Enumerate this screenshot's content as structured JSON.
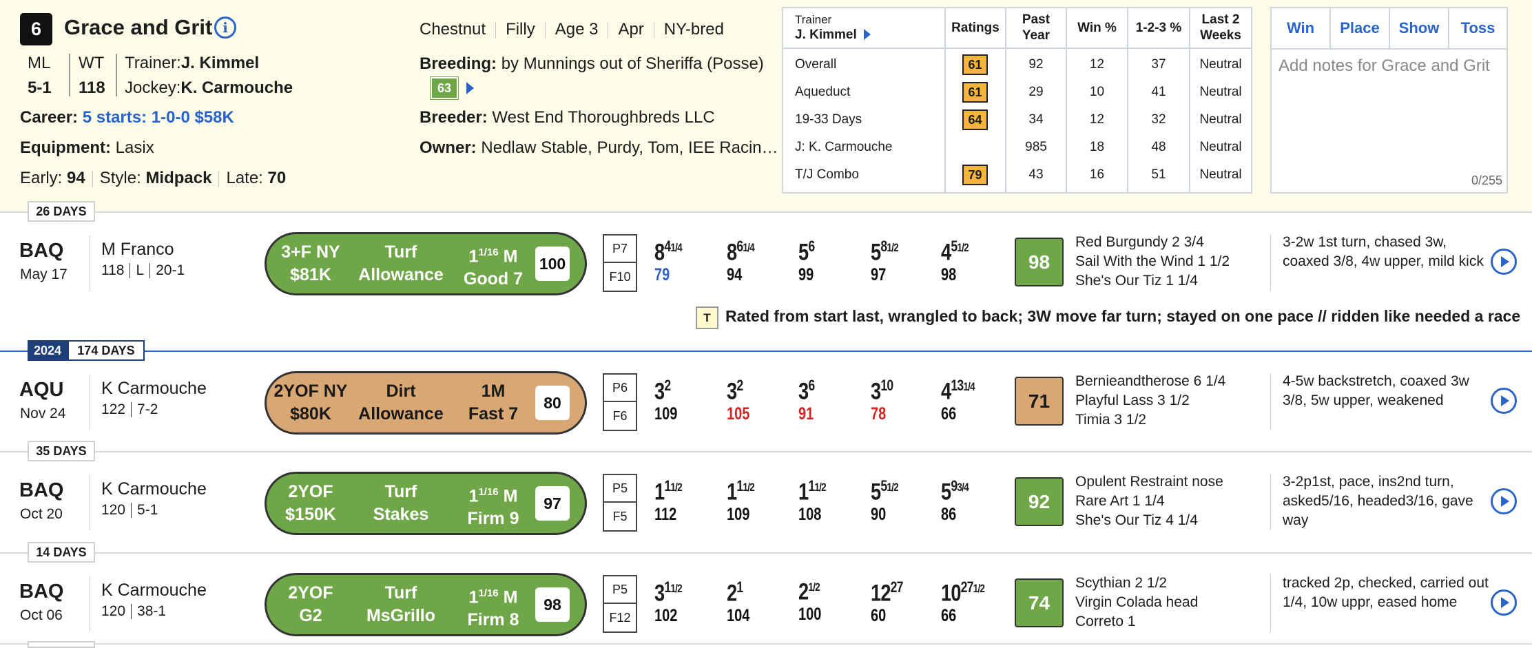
{
  "horse": {
    "number": "6",
    "name": "Grace and Grit",
    "ml_label": "ML",
    "ml": "5-1",
    "wt_label": "WT",
    "wt": "118",
    "trainer_label": "Trainer:",
    "trainer": "J. Kimmel",
    "jockey_label": "Jockey:",
    "jockey": "K. Carmouche",
    "career_label": "Career:",
    "career": "5 starts: 1-0-0 $58K",
    "equipment_label": "Equipment:",
    "equipment": "Lasix",
    "early_label": "Early:",
    "early": "94",
    "style_label": "Style:",
    "style": "Midpack",
    "late_label": "Late:",
    "late": "70",
    "attributes": [
      "Chestnut",
      "Filly",
      "Age 3",
      "Apr",
      "NY-bred"
    ],
    "breeding_label": "Breeding:",
    "breeding": "by Munnings out of Sheriffa (Posse)",
    "breeding_rating": "63",
    "breeder_label": "Breeder:",
    "breeder": "West End Thoroughbreds LLC",
    "owner_label": "Owner:",
    "owner": "Nedlaw Stable, Purdy, Tom, IEE Racin…"
  },
  "stats": {
    "trainer_small": "Trainer",
    "trainer_name": "J. Kimmel",
    "headers": [
      "Ratings",
      "Past\nYear",
      "Win %",
      "1-2-3 %",
      "Last 2\nWeeks"
    ],
    "rows": [
      {
        "label": "Overall",
        "rating": "61",
        "past": "92",
        "win": "12",
        "itm": "37",
        "last2": "Neutral"
      },
      {
        "label": "Aqueduct",
        "rating": "61",
        "past": "29",
        "win": "10",
        "itm": "41",
        "last2": "Neutral"
      },
      {
        "label": "19-33 Days",
        "rating": "64",
        "past": "34",
        "win": "12",
        "itm": "32",
        "last2": "Neutral"
      },
      {
        "label": "J: K. Carmouche",
        "rating": "",
        "past": "985",
        "win": "18",
        "itm": "48",
        "last2": "Neutral"
      },
      {
        "label": "T/J Combo",
        "rating": "79",
        "past": "43",
        "win": "16",
        "itm": "51",
        "last2": "Neutral"
      }
    ]
  },
  "bets": {
    "win": "Win",
    "place": "Place",
    "show": "Show",
    "toss": "Toss",
    "notes_placeholder": "Add notes for Grace and Grit",
    "counter": "0/255"
  },
  "colors": {
    "green": "#6fa648",
    "tan": "#d9a774",
    "blue": "#2a63c9",
    "rating": "#f6b43a"
  },
  "races": [
    {
      "gap": "26 DAYS",
      "track": "BAQ",
      "date": "May 17",
      "jockey": "M Franco",
      "weight": "118",
      "med": "L",
      "odds": "20-1",
      "surface_color": "green",
      "cls1": "3+F NY",
      "cls2": "$81K",
      "type1": "Turf",
      "type2": "Allowance",
      "dist": "1",
      "dist_frac": "1/16",
      "dist_unit": "M",
      "cond": "Good 7",
      "score": "100",
      "post": "P7",
      "field": "F10",
      "calls": [
        {
          "pos": "8",
          "lead": "4",
          "lfrac": "1/4",
          "fig": "79",
          "figcolor": "blue"
        },
        {
          "pos": "8",
          "lead": "6",
          "lfrac": "1/4",
          "fig": "94",
          "figcolor": "black"
        },
        {
          "pos": "5",
          "lead": "6",
          "lfrac": "",
          "fig": "99",
          "figcolor": "black"
        },
        {
          "pos": "5",
          "lead": "8",
          "lfrac": "1/2",
          "fig": "97",
          "figcolor": "black"
        },
        {
          "pos": "4",
          "lead": "5",
          "lfrac": "1/2",
          "fig": "98",
          "figcolor": "black"
        }
      ],
      "speed": "98",
      "finishers": [
        "Red Burgundy  2 3/4",
        "Sail With the Wind  1 1/2",
        "She's Our Tiz  1 1/4"
      ],
      "comment": "3-2w 1st turn, chased 3w, coaxed 3/8, 4w upper, mild kick",
      "note_icon": "T",
      "note": "Rated from start last, wrangled to back; 3W move far turn; stayed on one pace // ridden like needed a race"
    },
    {
      "year": "2024",
      "gap": "174 DAYS",
      "track": "AQU",
      "date": "Nov 24",
      "jockey": "K Carmouche",
      "weight": "122",
      "med": "",
      "odds": "7-2",
      "surface_color": "tan",
      "cls1": "2YOF NY",
      "cls2": "$80K",
      "type1": "Dirt",
      "type2": "Allowance",
      "dist": "1M",
      "dist_frac": "",
      "dist_unit": "",
      "cond": "Fast 7",
      "score": "80",
      "post": "P6",
      "field": "F6",
      "calls": [
        {
          "pos": "3",
          "lead": "2",
          "lfrac": "",
          "fig": "109",
          "figcolor": "black"
        },
        {
          "pos": "3",
          "lead": "2",
          "lfrac": "",
          "fig": "105",
          "figcolor": "red"
        },
        {
          "pos": "3",
          "lead": "6",
          "lfrac": "",
          "fig": "91",
          "figcolor": "red"
        },
        {
          "pos": "3",
          "lead": "10",
          "lfrac": "",
          "fig": "78",
          "figcolor": "red"
        },
        {
          "pos": "4",
          "lead": "13",
          "lfrac": "1/4",
          "fig": "66",
          "figcolor": "black"
        }
      ],
      "speed": "71",
      "finishers": [
        "Bernieandtherose  6 1/4",
        "Playful Lass  3 1/2",
        "Timia  3 1/2"
      ],
      "comment": "4-5w backstretch, coaxed 3w 3/8, 5w upper, weakened"
    },
    {
      "gap": "35 DAYS",
      "track": "BAQ",
      "date": "Oct 20",
      "jockey": "K Carmouche",
      "weight": "120",
      "med": "",
      "odds": "5-1",
      "surface_color": "green",
      "cls1": "2YOF",
      "cls2": "$150K",
      "type1": "Turf",
      "type2": "Stakes",
      "dist": "1",
      "dist_frac": "1/16",
      "dist_unit": "M",
      "cond": "Firm 9",
      "score": "97",
      "post": "P5",
      "field": "F5",
      "calls": [
        {
          "pos": "1",
          "lead": "1",
          "lfrac": "1/2",
          "fig": "112",
          "figcolor": "black"
        },
        {
          "pos": "1",
          "lead": "1",
          "lfrac": "1/2",
          "fig": "109",
          "figcolor": "black"
        },
        {
          "pos": "1",
          "lead": "1",
          "lfrac": "1/2",
          "fig": "108",
          "figcolor": "black"
        },
        {
          "pos": "5",
          "lead": "5",
          "lfrac": "1/2",
          "fig": "90",
          "figcolor": "black"
        },
        {
          "pos": "5",
          "lead": "9",
          "lfrac": "3/4",
          "fig": "86",
          "figcolor": "black"
        }
      ],
      "speed": "92",
      "finishers": [
        "Opulent Restraint  nose",
        "Rare Art  1 1/4",
        "She's Our Tiz  4 1/4"
      ],
      "comment": "3-2p1st, pace, ins2nd turn, asked5/16, headed3/16, gave way"
    },
    {
      "gap": "14 DAYS",
      "track": "BAQ",
      "date": "Oct 06",
      "jockey": "K Carmouche",
      "weight": "120",
      "med": "",
      "odds": "38-1",
      "surface_color": "green",
      "cls1": "2YOF",
      "cls2": "G2",
      "type1": "Turf",
      "type2": "MsGrillo",
      "dist": "1",
      "dist_frac": "1/16",
      "dist_unit": "M",
      "cond": "Firm 8",
      "score": "98",
      "post": "P5",
      "field": "F12",
      "calls": [
        {
          "pos": "3",
          "lead": "1",
          "lfrac": "1/2",
          "fig": "102",
          "figcolor": "black"
        },
        {
          "pos": "2",
          "lead": "1",
          "lfrac": "",
          "fig": "104",
          "figcolor": "black"
        },
        {
          "pos": "2",
          "lead": "",
          "lfrac": "1/2",
          "fig": "100",
          "figcolor": "black"
        },
        {
          "pos": "12",
          "lead": "27",
          "lfrac": "",
          "fig": "60",
          "figcolor": "black"
        },
        {
          "pos": "10",
          "lead": "27",
          "lfrac": "1/2",
          "fig": "66",
          "figcolor": "black"
        }
      ],
      "speed": "74",
      "finishers": [
        "Scythian  2 1/2",
        "Virgin Colada  head",
        "Correto  1"
      ],
      "comment": "tracked 2p, checked, carried out 1/4, 10w uppr, eased home"
    }
  ]
}
